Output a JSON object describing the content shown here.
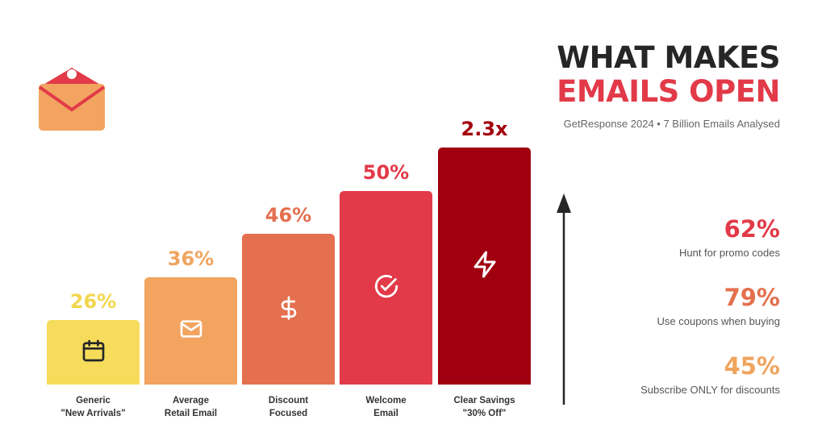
{
  "title_line1": "WHAT MAKES",
  "title_line2": "EMAILS OPEN",
  "subtitle": "GetResponse 2024 • 7 Billion Emails Analysed",
  "chart_data": {
    "type": "bar",
    "title": "WHAT MAKES EMAILS OPEN",
    "categories": [
      "Generic \"New Arrivals\"",
      "Average Retail Email",
      "Discount Focused",
      "Welcome Email",
      "Clear Savings \"30% Off\""
    ],
    "category_lines": [
      [
        "Generic",
        "\"New Arrivals\""
      ],
      [
        "Average",
        "Retail Email"
      ],
      [
        "Discount",
        "Focused"
      ],
      [
        "Welcome",
        "Email"
      ],
      [
        "Clear Savings",
        "\"30% Off\""
      ]
    ],
    "value_labels": [
      "26%",
      "36%",
      "46%",
      "50%",
      "2.3x"
    ],
    "values": [
      26,
      36,
      46,
      50,
      2.3
    ],
    "icons": [
      "calendar-icon",
      "envelope-icon",
      "dollar-icon",
      "check-circle-icon",
      "lightning-icon"
    ],
    "colors": [
      "#F7DC5C",
      "#F2A460",
      "#E5704F",
      "#E23A48",
      "#A0000F"
    ],
    "label_colors": [
      "#F2D64E",
      "#F0A45E",
      "#E4704E",
      "#E23A48",
      "#A3000E"
    ]
  },
  "stats": [
    {
      "value": "62%",
      "label": "Hunt for promo codes",
      "color": "#E23A48"
    },
    {
      "value": "79%",
      "label": "Use coupons when buying",
      "color": "#E4704E"
    },
    {
      "value": "45%",
      "label": "Subscribe ONLY for discounts",
      "color": "#F0A45E"
    }
  ]
}
